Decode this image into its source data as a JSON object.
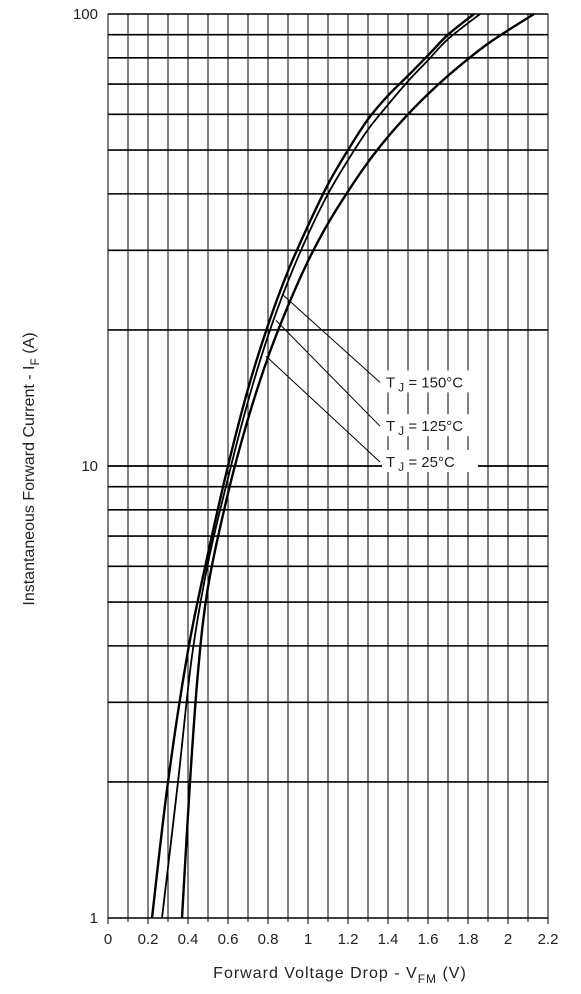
{
  "chart_data": {
    "type": "line",
    "title": "",
    "xlabel": {
      "main": "Forward Voltage Drop - V",
      "sub": "FM",
      "unit": " (V)"
    },
    "ylabel": {
      "main": "Instantaneous Forward Current - I",
      "sub": "F",
      "unit": " (A)"
    },
    "xscale": "linear",
    "yscale": "log",
    "xlim": [
      0,
      2.2
    ],
    "ylim": [
      1,
      100
    ],
    "grid": true,
    "x_ticks": [
      {
        "value": 0,
        "label": "0"
      },
      {
        "value": 0.2,
        "label": "0.2"
      },
      {
        "value": 0.4,
        "label": "0.4"
      },
      {
        "value": 0.6,
        "label": "0.6"
      },
      {
        "value": 0.8,
        "label": "0.8"
      },
      {
        "value": 1,
        "label": "1"
      },
      {
        "value": 1.2,
        "label": "1.2"
      },
      {
        "value": 1.4,
        "label": "1.4"
      },
      {
        "value": 1.6,
        "label": "1.6"
      },
      {
        "value": 1.8,
        "label": "1.8"
      },
      {
        "value": 2,
        "label": "2"
      },
      {
        "value": 2.2,
        "label": "2.2"
      }
    ],
    "y_ticks": [
      {
        "value": 1,
        "label": "1"
      },
      {
        "value": 10,
        "label": "10"
      },
      {
        "value": 100,
        "label": "100"
      }
    ],
    "series": [
      {
        "label_prefix": "T",
        "label_sub": "J",
        "label_value": " = 150°C",
        "label_at": {
          "x": 1.3,
          "y": 15
        },
        "pointer_from": {
          "x": 0.87,
          "y": 24
        },
        "x": [
          0.22,
          0.3,
          0.4,
          0.5,
          0.6,
          0.7,
          0.8,
          0.9,
          1.0,
          1.1,
          1.2,
          1.3,
          1.4,
          1.5,
          1.6,
          1.7,
          1.83
        ],
        "y": [
          1,
          2,
          3.9,
          6.4,
          10,
          14.8,
          20.5,
          27,
          34,
          42,
          50,
          58.5,
          66,
          73,
          81,
          90,
          100
        ]
      },
      {
        "label_prefix": "T",
        "label_sub": "J",
        "label_value": " = 125°C",
        "label_at": {
          "x": 1.3,
          "y": 12
        },
        "pointer_from": {
          "x": 0.84,
          "y": 21
        },
        "x": [
          0.27,
          0.35,
          0.42,
          0.5,
          0.6,
          0.7,
          0.8,
          0.9,
          1.0,
          1.1,
          1.2,
          1.3,
          1.4,
          1.5,
          1.6,
          1.7,
          1.86
        ],
        "y": [
          1,
          2,
          3.8,
          6.1,
          9.4,
          13.9,
          19.4,
          25.6,
          32.5,
          40,
          47.5,
          55.5,
          63,
          71,
          79,
          88,
          100
        ]
      },
      {
        "label_prefix": "T",
        "label_sub": "J",
        "label_value": " =   25°C",
        "label_at": {
          "x": 1.3,
          "y": 10
        },
        "pointer_from": {
          "x": 0.79,
          "y": 17.5
        },
        "x": [
          0.37,
          0.41,
          0.45,
          0.5,
          0.6,
          0.7,
          0.8,
          0.9,
          1.0,
          1.1,
          1.2,
          1.3,
          1.4,
          1.5,
          1.6,
          1.7,
          1.8,
          1.9,
          2.0,
          2.13
        ],
        "y": [
          1,
          2,
          3.5,
          5.4,
          8.7,
          12.7,
          17.4,
          22.6,
          28.4,
          34.4,
          40.5,
          47,
          53.5,
          60,
          66.5,
          73,
          79.5,
          86,
          92,
          100
        ]
      }
    ]
  }
}
